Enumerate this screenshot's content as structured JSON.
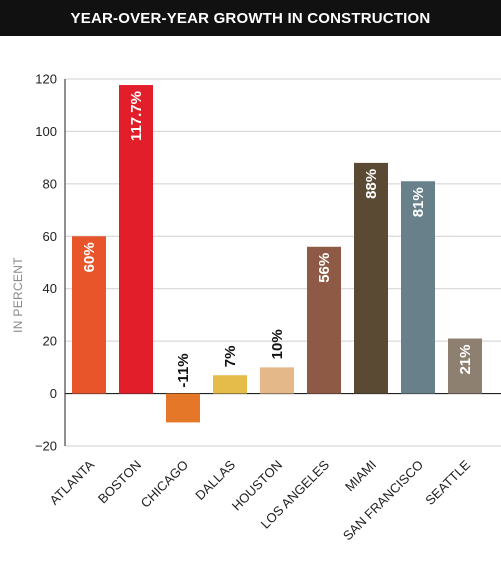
{
  "chart_data": {
    "type": "bar",
    "title": "YEAR-OVER-YEAR GROWTH IN CONSTRUCTION",
    "ylabel": "IN PERCENT",
    "xlabel": "",
    "ylim": [
      -20,
      120
    ],
    "yticks": [
      -20,
      0,
      20,
      40,
      60,
      80,
      100,
      120
    ],
    "grid": true,
    "categories": [
      "ATLANTA",
      "BOSTON",
      "CHICAGO",
      "DALLAS",
      "HOUSTON",
      "LOS ANGELES",
      "MIAMI",
      "SAN FRANCISCO",
      "SEATTLE"
    ],
    "values": [
      60,
      117.7,
      -11,
      7,
      10,
      56,
      88,
      81,
      21
    ],
    "data_labels": [
      "60%",
      "117.7%",
      "-11%",
      "7%",
      "10%",
      "56%",
      "88%",
      "81%",
      "21%"
    ],
    "colors": [
      "#e8552b",
      "#e31e2b",
      "#e57828",
      "#e5bb4a",
      "#e5b889",
      "#8e5a45",
      "#5b4a33",
      "#67808a",
      "#8e8071"
    ]
  }
}
